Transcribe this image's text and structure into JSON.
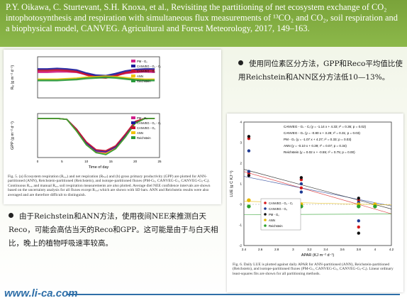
{
  "slide": {
    "citation": "P.Y. Oikawa, C. Sturtevant, S.H. Knoxa, et al., Revisiting the partitioning of net ecosystem exchange of CO₂ intophotosynthesis and respiration with simultaneous flux measurements of ¹³CO₂ and CO₂, soil respiration and a biophysical model, CANVEG. Agricultural and Forest Meteorology, 2017, 149–163.",
    "bullet_right": "使用同位素区分方法，GPP和Reco平均值比使用Reichstein和ANN区分方法低10—13%。",
    "bullet_left": "由于Reichstein和ANN方法，使用夜间NEE来推测白天Reco，可能会高估当天的Reco和GPP。这可能是由于与白天相比，晚上的植物呼吸速率较高。",
    "footer_url": "www.li-ca.com",
    "colors": {
      "header_bg": "#7aa33a",
      "footer": "#2f6fa8"
    }
  },
  "fig5": {
    "top_ylabel": "Rₑ (g m⁻² d⁻¹)",
    "bottom_ylabel": "GPP (g m⁻² d⁻¹)",
    "xlabel": "Time of day",
    "top_legend": [
      "PM - Gₛ",
      "CANVEG - Gₛ - Cᵢ",
      "CANVEG - Gₛ",
      "ANN",
      "Reichstein"
    ],
    "bottom_legend": [
      "PM - Gₛ",
      "CANVEG - Gₛ - Cᵢ",
      "CANVEG - Gₛ",
      "ANN",
      "Reichstein"
    ],
    "x_ticks": [
      "0",
      "5",
      "10",
      "15",
      "20",
      "25"
    ],
    "caption": "Fig. 5. (a) Ecosystem respiration (Rₑₒₒ) and net respiration (Rₙₑₜ) and (b) gross primary productivity (GPP) are plotted for ANN-partitioned (ANN), Reichstein-partitioned (Reichstein), and isotope-partitioned fluxes (PM-Gₛ, CANVEG-Gₛ, CANVEG-Gₛ-Cᵢ). Continuous Rₑₒₒ and manual Rₑₒₒ soil respiration measurements are also plotted. Average diel NEE confidence intervals are shown based on the uncertainty analysis for all fluxes except Rₛₒᵢₗ which are shown with SD bars. ANN and Reichstein results were also averaged and are therefore difficult to distinguish."
  },
  "fig6": {
    "equations": [
      "CANVEG - Gₛ - Cᵢ (y = -1.14 x + 4.33; r² = 0.36; p = 0.02)",
      "CANVEG - Gₛ (y = -0.80 x + 3.28; r² = 0.31; p = 0.03)",
      "PM - Gₛ (y = -1.07 x + 4.27; r² = 0.33; p = 0.03)",
      "ANN (y = -0.10 x + 0.39; r² = 0.07; p = 0.34)",
      "Reichstein (y = 0.02 x + -0.55; r² = 0.75; p = 0.00)"
    ],
    "ylabel": "LUE (g C KJ⁻¹)",
    "xlabel": "APAR (KJ m⁻² d⁻¹)",
    "x_ticks": [
      "2.4",
      "2.6",
      "2.8",
      "3",
      "3.2",
      "3.4",
      "3.6",
      "3.8",
      "4",
      "4.2"
    ],
    "y_ticks": [
      "4",
      "3",
      "2",
      "1",
      "0",
      "-1",
      "-2"
    ],
    "legend": [
      "CANVEG - Gₛ - Cᵢ",
      "CANVEG - Gₛ",
      "PM - Gₛ",
      "ANN",
      "Reichstein"
    ],
    "caption": "Fig. 6. Daily LUE is plotted against daily APAR for ANN-partitioned (ANN), Reichstein-partitioned (Reichstein), and isotope-partitioned fluxes (PM-Gₛ, CANVEG-Gₛ, CANVEG-Gₛ-Cᵢ). Linear ordinary least-squares fits are shown for all partitioning methods."
  },
  "chart_data": [
    {
      "type": "line",
      "title": "",
      "xlabel": "Time of day",
      "ylabel": "Rₑ (g m⁻² d⁻¹)",
      "xlim": [
        0,
        25
      ],
      "ylim": [
        -2,
        6
      ],
      "x": [
        0,
        2,
        4,
        6,
        8,
        10,
        12,
        14,
        16,
        18,
        20,
        22,
        24
      ],
      "series": [
        {
          "name": "PM - Gₛ",
          "color": "#d11f8a",
          "values": [
            3.0,
            3.0,
            3.1,
            3.1,
            3.0,
            2.6,
            2.2,
            2.0,
            2.4,
            2.8,
            3.0,
            3.1,
            3.0
          ]
        },
        {
          "name": "CANVEG - Gₛ - Cᵢ",
          "color": "#1a1a9a",
          "values": [
            3.6,
            3.6,
            3.7,
            3.6,
            3.4,
            2.8,
            2.4,
            2.3,
            2.7,
            3.2,
            3.5,
            3.6,
            3.6
          ]
        },
        {
          "name": "CANVEG - Gₛ",
          "color": "#c8102e",
          "values": [
            3.3,
            3.3,
            3.4,
            3.3,
            3.1,
            2.5,
            2.0,
            1.9,
            2.3,
            2.9,
            3.2,
            3.3,
            3.3
          ]
        },
        {
          "name": "ANN",
          "color": "#f2c200",
          "values": [
            1.6,
            1.6,
            1.6,
            1.7,
            1.8,
            2.0,
            2.1,
            2.2,
            2.1,
            1.9,
            1.7,
            1.6,
            1.6
          ]
        },
        {
          "name": "Reichstein",
          "color": "#2a9a3a",
          "values": [
            1.4,
            1.4,
            1.4,
            1.5,
            1.6,
            1.8,
            1.9,
            2.0,
            1.9,
            1.7,
            1.5,
            1.4,
            1.4
          ]
        }
      ]
    },
    {
      "type": "line",
      "title": "",
      "xlabel": "Time of day",
      "ylabel": "GPP (g m⁻² d⁻¹)",
      "xlim": [
        0,
        25
      ],
      "ylim": [
        -40,
        5
      ],
      "x": [
        0,
        2,
        4,
        6,
        8,
        10,
        12,
        14,
        16,
        18,
        20,
        22,
        24
      ],
      "series": [
        {
          "name": "PM - Gₛ",
          "color": "#d11f8a",
          "values": [
            0,
            0,
            0,
            -1,
            -12,
            -26,
            -34,
            -35,
            -30,
            -18,
            -4,
            0,
            0
          ]
        },
        {
          "name": "CANVEG - Gₛ - Cᵢ",
          "color": "#1a1a9a",
          "values": [
            0,
            0,
            0,
            -1,
            -11,
            -25,
            -33,
            -34,
            -29,
            -17,
            -4,
            0,
            0
          ]
        },
        {
          "name": "CANVEG - Gₛ",
          "color": "#c8102e",
          "values": [
            0,
            0,
            0,
            -1,
            -11,
            -24,
            -32,
            -33,
            -28,
            -16,
            -3,
            0,
            0
          ]
        },
        {
          "name": "ANN",
          "color": "#f2c200",
          "values": [
            0,
            0,
            0,
            -1,
            -13,
            -27,
            -35,
            -36,
            -31,
            -19,
            -5,
            0,
            0
          ]
        },
        {
          "name": "Reichstein",
          "color": "#2a9a3a",
          "values": [
            0,
            0,
            0,
            -1,
            -13,
            -27,
            -35,
            -37,
            -31,
            -19,
            -5,
            0,
            0
          ]
        }
      ]
    },
    {
      "type": "scatter",
      "title": "",
      "xlabel": "APAR (KJ m⁻² d⁻¹)",
      "ylabel": "LUE (g C KJ⁻¹)",
      "xlim": [
        2.4,
        4.2
      ],
      "ylim": [
        -2,
        4
      ],
      "series": [
        {
          "name": "CANVEG - Gₛ - Cᵢ",
          "color": "#d7191c",
          "points": [
            [
              2.46,
              3.2
            ],
            [
              2.46,
              1.5
            ],
            [
              3.1,
              1.2
            ],
            [
              3.1,
              0.8
            ],
            [
              3.8,
              0.2
            ],
            [
              3.8,
              -1.1
            ],
            [
              3.8,
              0.0
            ]
          ]
        },
        {
          "name": "CANVEG - Gₛ",
          "color": "#1f3a93",
          "points": [
            [
              2.46,
              2.6
            ],
            [
              2.46,
              1.6
            ],
            [
              3.1,
              1.0
            ],
            [
              3.1,
              0.6
            ],
            [
              3.8,
              0.1
            ],
            [
              3.8,
              -0.8
            ]
          ]
        },
        {
          "name": "PM - Gₛ",
          "color": "#111111",
          "points": [
            [
              2.46,
              3.3
            ],
            [
              2.46,
              1.4
            ],
            [
              3.1,
              1.3
            ],
            [
              3.8,
              0.3
            ],
            [
              3.8,
              -1.4
            ]
          ]
        },
        {
          "name": "ANN",
          "color": "#e6b800",
          "points": [
            [
              2.46,
              0.2
            ],
            [
              2.8,
              0.1
            ],
            [
              3.1,
              0.0
            ],
            [
              3.8,
              0.0
            ],
            [
              4.0,
              0.0
            ]
          ]
        },
        {
          "name": "Reichstein",
          "color": "#2ca02c",
          "points": [
            [
              2.46,
              -0.1
            ],
            [
              2.8,
              -0.1
            ],
            [
              3.1,
              -0.1
            ],
            [
              3.8,
              -0.1
            ],
            [
              4.0,
              -0.1
            ]
          ]
        }
      ],
      "fits": [
        {
          "name": "CANVEG - Gₛ - Cᵢ",
          "slope": -1.14,
          "intercept": 4.33
        },
        {
          "name": "CANVEG - Gₛ",
          "slope": -0.8,
          "intercept": 3.28
        },
        {
          "name": "PM - Gₛ",
          "slope": -1.07,
          "intercept": 4.27
        },
        {
          "name": "ANN",
          "slope": -0.1,
          "intercept": 0.39
        },
        {
          "name": "Reichstein",
          "slope": 0.02,
          "intercept": -0.55
        }
      ]
    }
  ]
}
